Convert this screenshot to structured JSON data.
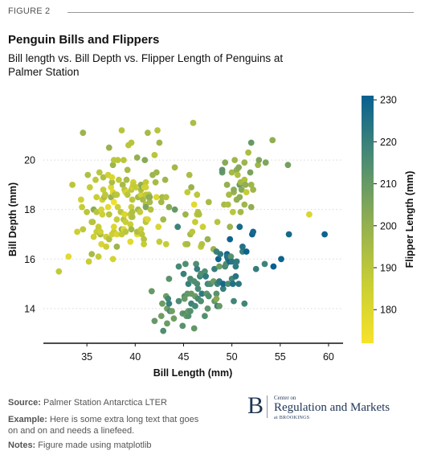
{
  "header": {
    "figure_label": "FIGURE 2",
    "title": "Penguin Bills and Flippers",
    "subtitle": "Bill length vs. Bill Depth vs. Flipper Length of Penguins at Palmer Station"
  },
  "colors": {
    "cmap_low": "#f7e22b",
    "cmap_mid1": "#c7cd35",
    "cmap_mid2": "#8ead53",
    "cmap_mid3": "#4a8b74",
    "cmap_high": "#086090",
    "grid": "#d8d8d8"
  },
  "chart_data": {
    "type": "scatter",
    "title": "Penguin Bills and Flippers",
    "xlabel": "Bill Length (mm)",
    "ylabel": "Bill Depth (mm)",
    "xlim": [
      30.5,
      61.5
    ],
    "ylim": [
      12.6,
      22.6
    ],
    "xticks": [
      35,
      40,
      45,
      50,
      55,
      60
    ],
    "yticks": [
      14,
      16,
      18,
      20
    ],
    "grid": "horizontal dotted",
    "colorbar": {
      "label": "Flipper Length (mm)",
      "range": [
        172,
        231
      ],
      "ticks": [
        180,
        190,
        200,
        210,
        220,
        230
      ]
    },
    "points": [
      [
        32.1,
        15.5,
        188
      ],
      [
        33.1,
        16.1,
        178
      ],
      [
        33.5,
        19.0,
        190
      ],
      [
        34.0,
        17.1,
        185
      ],
      [
        34.4,
        18.4,
        184
      ],
      [
        34.5,
        18.1,
        187
      ],
      [
        34.6,
        21.1,
        198
      ],
      [
        34.6,
        17.2,
        189
      ],
      [
        35.0,
        17.9,
        190
      ],
      [
        35.1,
        19.4,
        193
      ],
      [
        35.2,
        15.9,
        186
      ],
      [
        35.3,
        18.9,
        187
      ],
      [
        35.5,
        16.2,
        195
      ],
      [
        35.5,
        17.5,
        190
      ],
      [
        35.6,
        17.5,
        191
      ],
      [
        35.7,
        16.9,
        185
      ],
      [
        35.7,
        18.0,
        202
      ],
      [
        35.9,
        19.2,
        189
      ],
      [
        36.0,
        18.5,
        186
      ],
      [
        36.0,
        17.9,
        190
      ],
      [
        36.0,
        17.1,
        187
      ],
      [
        36.2,
        17.2,
        187
      ],
      [
        36.2,
        16.1,
        187
      ],
      [
        36.2,
        17.3,
        187
      ],
      [
        36.3,
        19.5,
        190
      ],
      [
        36.4,
        17.0,
        195
      ],
      [
        36.4,
        17.1,
        184
      ],
      [
        36.5,
        16.6,
        181
      ],
      [
        36.5,
        18.0,
        182
      ],
      [
        36.6,
        17.8,
        185
      ],
      [
        36.6,
        18.4,
        184
      ],
      [
        36.7,
        18.8,
        187
      ],
      [
        36.7,
        19.3,
        193
      ],
      [
        36.8,
        18.5,
        193
      ],
      [
        36.9,
        18.6,
        189
      ],
      [
        37.0,
        16.9,
        185
      ],
      [
        37.0,
        16.5,
        185
      ],
      [
        37.2,
        18.1,
        178
      ],
      [
        37.2,
        19.4,
        184
      ],
      [
        37.3,
        20.5,
        199
      ],
      [
        37.3,
        17.8,
        191
      ],
      [
        37.3,
        16.8,
        192
      ],
      [
        37.5,
        18.9,
        179
      ],
      [
        37.5,
        18.5,
        199
      ],
      [
        37.6,
        19.1,
        194
      ],
      [
        37.6,
        17.0,
        185
      ],
      [
        37.6,
        19.3,
        181
      ],
      [
        37.7,
        18.7,
        180
      ],
      [
        37.7,
        19.8,
        198
      ],
      [
        37.7,
        16.0,
        183
      ],
      [
        37.8,
        18.3,
        174
      ],
      [
        37.8,
        17.1,
        186
      ],
      [
        37.8,
        17.3,
        180
      ],
      [
        37.8,
        20.0,
        190
      ],
      [
        37.9,
        18.6,
        172
      ],
      [
        37.9,
        18.6,
        193
      ],
      [
        38.1,
        18.6,
        190
      ],
      [
        38.1,
        17.0,
        181
      ],
      [
        38.1,
        16.5,
        198
      ],
      [
        38.1,
        17.6,
        187
      ],
      [
        38.2,
        18.1,
        185
      ],
      [
        38.2,
        20.0,
        190
      ],
      [
        38.3,
        19.2,
        189
      ],
      [
        38.5,
        17.9,
        190
      ],
      [
        38.6,
        21.2,
        191
      ],
      [
        38.6,
        17.2,
        199
      ],
      [
        38.6,
        17.0,
        188
      ],
      [
        38.7,
        19.0,
        195
      ],
      [
        38.8,
        17.2,
        180
      ],
      [
        38.8,
        17.6,
        191
      ],
      [
        38.8,
        20.0,
        190
      ],
      [
        38.9,
        17.8,
        181
      ],
      [
        38.9,
        18.8,
        190
      ],
      [
        39.0,
        17.1,
        190
      ],
      [
        39.0,
        18.7,
        185
      ],
      [
        39.0,
        17.5,
        186
      ],
      [
        39.1,
        18.7,
        181
      ],
      [
        39.1,
        19.2,
        195
      ],
      [
        39.2,
        19.6,
        195
      ],
      [
        39.2,
        18.6,
        190
      ],
      [
        39.3,
        20.6,
        190
      ],
      [
        39.5,
        17.4,
        186
      ],
      [
        39.5,
        16.7,
        178
      ],
      [
        39.5,
        17.8,
        188
      ],
      [
        39.6,
        17.7,
        186
      ],
      [
        39.6,
        18.8,
        190
      ],
      [
        39.6,
        17.2,
        196
      ],
      [
        39.6,
        18.1,
        186
      ],
      [
        39.6,
        20.7,
        191
      ],
      [
        39.7,
        17.7,
        193
      ],
      [
        39.7,
        18.4,
        190
      ],
      [
        39.7,
        18.9,
        184
      ],
      [
        39.7,
        17.9,
        193
      ],
      [
        39.8,
        19.1,
        184
      ],
      [
        39.8,
        19.0,
        187
      ],
      [
        40.1,
        18.9,
        188
      ],
      [
        40.2,
        17.0,
        176
      ],
      [
        40.2,
        20.1,
        200
      ],
      [
        40.2,
        17.1,
        193
      ],
      [
        40.3,
        18.0,
        195
      ],
      [
        40.3,
        18.5,
        196
      ],
      [
        40.5,
        18.9,
        180
      ],
      [
        40.5,
        17.9,
        187
      ],
      [
        40.6,
        18.6,
        183
      ],
      [
        40.6,
        19.0,
        199
      ],
      [
        40.6,
        18.8,
        193
      ],
      [
        40.6,
        17.2,
        187
      ],
      [
        40.7,
        17.0,
        190
      ],
      [
        40.8,
        18.4,
        195
      ],
      [
        40.8,
        18.9,
        208
      ],
      [
        40.9,
        18.9,
        184
      ],
      [
        40.9,
        16.8,
        191
      ],
      [
        40.9,
        16.6,
        187
      ],
      [
        41.0,
        20.0,
        203
      ],
      [
        41.1,
        17.6,
        182
      ],
      [
        41.1,
        18.2,
        192
      ],
      [
        41.1,
        19.1,
        188
      ],
      [
        41.1,
        18.6,
        189
      ],
      [
        41.1,
        17.5,
        190
      ],
      [
        41.1,
        18.1,
        205
      ],
      [
        41.1,
        18.9,
        183
      ],
      [
        41.3,
        17.6,
        181
      ],
      [
        41.3,
        21.1,
        195
      ],
      [
        41.4,
        18.6,
        191
      ],
      [
        41.4,
        18.5,
        202
      ],
      [
        41.5,
        18.3,
        195
      ],
      [
        41.5,
        18.5,
        201
      ],
      [
        41.6,
        18.0,
        192
      ],
      [
        41.7,
        14.7,
        210
      ],
      [
        41.8,
        19.4,
        198
      ],
      [
        42.0,
        20.2,
        190
      ],
      [
        42.0,
        13.5,
        210
      ],
      [
        42.1,
        19.1,
        195
      ],
      [
        42.2,
        18.5,
        180
      ],
      [
        42.2,
        19.5,
        197
      ],
      [
        42.3,
        21.2,
        191
      ],
      [
        42.4,
        17.3,
        181
      ],
      [
        42.5,
        20.7,
        197
      ],
      [
        42.5,
        16.7,
        187
      ],
      [
        42.7,
        18.3,
        196
      ],
      [
        42.7,
        13.7,
        208
      ],
      [
        42.8,
        18.5,
        195
      ],
      [
        42.8,
        14.2,
        209
      ],
      [
        42.9,
        17.6,
        196
      ],
      [
        42.9,
        13.1,
        215
      ],
      [
        43.1,
        19.2,
        197
      ],
      [
        43.2,
        18.5,
        192
      ],
      [
        43.2,
        16.6,
        187
      ],
      [
        43.2,
        14.5,
        208
      ],
      [
        43.3,
        14.0,
        208
      ],
      [
        43.3,
        13.4,
        209
      ],
      [
        43.4,
        14.4,
        218
      ],
      [
        43.5,
        18.1,
        202
      ],
      [
        43.5,
        15.2,
        213
      ],
      [
        43.5,
        14.2,
        220
      ],
      [
        43.6,
        13.9,
        217
      ],
      [
        43.8,
        13.9,
        208
      ],
      [
        44.0,
        13.6,
        208
      ],
      [
        44.1,
        19.7,
        196
      ],
      [
        44.1,
        18.0,
        210
      ],
      [
        44.4,
        17.3,
        219
      ],
      [
        44.5,
        15.7,
        217
      ],
      [
        44.5,
        14.3,
        216
      ],
      [
        44.9,
        13.8,
        212
      ],
      [
        44.9,
        13.3,
        213
      ],
      [
        45.0,
        15.4,
        220
      ],
      [
        45.1,
        14.5,
        215
      ],
      [
        45.1,
        14.4,
        210
      ],
      [
        45.2,
        17.8,
        198
      ],
      [
        45.2,
        15.8,
        215
      ],
      [
        45.2,
        16.6,
        191
      ],
      [
        45.2,
        13.8,
        215
      ],
      [
        45.3,
        13.7,
        210
      ],
      [
        45.4,
        18.7,
        188
      ],
      [
        45.4,
        14.6,
        211
      ],
      [
        45.4,
        16.6,
        194
      ],
      [
        45.5,
        13.7,
        214
      ],
      [
        45.5,
        15.0,
        220
      ],
      [
        45.5,
        13.9,
        210
      ],
      [
        45.6,
        19.4,
        194
      ],
      [
        45.7,
        13.9,
        214
      ],
      [
        45.7,
        15.2,
        216
      ],
      [
        45.7,
        17.0,
        195
      ],
      [
        45.8,
        14.6,
        210
      ],
      [
        45.8,
        14.2,
        219
      ],
      [
        45.8,
        18.9,
        199
      ],
      [
        45.9,
        17.1,
        190
      ],
      [
        46.0,
        21.5,
        194
      ],
      [
        46.1,
        13.2,
        211
      ],
      [
        46.1,
        15.1,
        215
      ],
      [
        46.1,
        18.2,
        178
      ],
      [
        46.2,
        14.5,
        209
      ],
      [
        46.2,
        14.1,
        217
      ],
      [
        46.2,
        17.5,
        187
      ],
      [
        46.3,
        15.8,
        215
      ],
      [
        46.4,
        17.8,
        191
      ],
      [
        46.4,
        15.0,
        216
      ],
      [
        46.4,
        15.6,
        221
      ],
      [
        46.4,
        18.6,
        190
      ],
      [
        46.5,
        14.8,
        217
      ],
      [
        46.5,
        17.9,
        192
      ],
      [
        46.5,
        14.4,
        217
      ],
      [
        46.6,
        17.8,
        193
      ],
      [
        46.7,
        15.3,
        219
      ],
      [
        46.8,
        15.4,
        215
      ],
      [
        46.8,
        14.3,
        215
      ],
      [
        46.8,
        16.5,
        189
      ],
      [
        46.9,
        14.6,
        222
      ],
      [
        46.9,
        16.6,
        192
      ],
      [
        47.0,
        17.3,
        185
      ],
      [
        47.2,
        13.7,
        214
      ],
      [
        47.2,
        15.5,
        215
      ],
      [
        47.3,
        15.3,
        222
      ],
      [
        47.4,
        14.6,
        212
      ],
      [
        47.5,
        14.0,
        212
      ],
      [
        47.5,
        15.0,
        218
      ],
      [
        47.5,
        16.8,
        199
      ],
      [
        47.6,
        14.5,
        215
      ],
      [
        47.6,
        18.3,
        195
      ],
      [
        47.7,
        15.0,
        216
      ],
      [
        47.8,
        15.0,
        215
      ],
      [
        48.1,
        16.4,
        199
      ],
      [
        48.1,
        15.1,
        209
      ],
      [
        48.2,
        14.3,
        210
      ],
      [
        48.2,
        15.6,
        221
      ],
      [
        48.4,
        14.6,
        213
      ],
      [
        48.4,
        16.3,
        220
      ],
      [
        48.4,
        14.4,
        203
      ],
      [
        48.5,
        17.5,
        191
      ],
      [
        48.5,
        14.1,
        220
      ],
      [
        48.5,
        15.0,
        219
      ],
      [
        48.6,
        16.0,
        230
      ],
      [
        48.7,
        14.1,
        210
      ],
      [
        48.7,
        15.7,
        208
      ],
      [
        48.7,
        15.1,
        222
      ],
      [
        48.8,
        16.2,
        222
      ],
      [
        49.0,
        19.5,
        210
      ],
      [
        49.0,
        19.6,
        212
      ],
      [
        49.1,
        14.8,
        220
      ],
      [
        49.1,
        15.0,
        228
      ],
      [
        49.2,
        18.2,
        195
      ],
      [
        49.3,
        19.9,
        203
      ],
      [
        49.3,
        15.7,
        217
      ],
      [
        49.4,
        15.8,
        216
      ],
      [
        49.5,
        19.0,
        200
      ],
      [
        49.5,
        16.2,
        229
      ],
      [
        49.5,
        16.1,
        224
      ],
      [
        49.6,
        18.2,
        193
      ],
      [
        49.6,
        15.0,
        216
      ],
      [
        49.6,
        16.0,
        225
      ],
      [
        49.7,
        18.6,
        195
      ],
      [
        49.8,
        17.3,
        198
      ],
      [
        49.8,
        15.9,
        229
      ],
      [
        49.8,
        16.8,
        230
      ],
      [
        49.9,
        16.1,
        213
      ],
      [
        50.0,
        19.5,
        196
      ],
      [
        50.0,
        15.2,
        218
      ],
      [
        50.0,
        15.9,
        224
      ],
      [
        50.1,
        17.9,
        190
      ],
      [
        50.1,
        15.0,
        225
      ],
      [
        50.2,
        18.7,
        198
      ],
      [
        50.2,
        18.8,
        202
      ],
      [
        50.2,
        14.3,
        218
      ],
      [
        50.3,
        20.0,
        197
      ],
      [
        50.4,
        15.3,
        224
      ],
      [
        50.4,
        15.7,
        222
      ],
      [
        50.5,
        19.6,
        201
      ],
      [
        50.5,
        18.4,
        200
      ],
      [
        50.5,
        15.9,
        222
      ],
      [
        50.6,
        19.4,
        193
      ],
      [
        50.7,
        19.7,
        203
      ],
      [
        50.7,
        15.0,
        223
      ],
      [
        50.8,
        18.5,
        201
      ],
      [
        50.8,
        19.0,
        210
      ],
      [
        50.8,
        17.3,
        228
      ],
      [
        50.9,
        17.9,
        196
      ],
      [
        50.9,
        19.1,
        196
      ],
      [
        51.0,
        18.8,
        203
      ],
      [
        51.1,
        16.3,
        220
      ],
      [
        51.1,
        16.5,
        225
      ],
      [
        51.3,
        18.2,
        197
      ],
      [
        51.3,
        19.2,
        193
      ],
      [
        51.3,
        19.9,
        198
      ],
      [
        51.3,
        14.2,
        218
      ],
      [
        51.4,
        19.0,
        201
      ],
      [
        51.5,
        16.3,
        230
      ],
      [
        51.5,
        18.7,
        187
      ],
      [
        51.7,
        20.3,
        194
      ],
      [
        51.9,
        19.5,
        206
      ],
      [
        52.0,
        18.1,
        201
      ],
      [
        52.0,
        19.0,
        197
      ],
      [
        52.0,
        20.7,
        210
      ],
      [
        52.1,
        17.0,
        230
      ],
      [
        52.2,
        17.1,
        228
      ],
      [
        52.2,
        18.8,
        197
      ],
      [
        52.5,
        15.6,
        221
      ],
      [
        52.7,
        19.8,
        197
      ],
      [
        52.8,
        20.0,
        205
      ],
      [
        53.4,
        15.8,
        219
      ],
      [
        53.5,
        19.9,
        205
      ],
      [
        54.2,
        20.8,
        201
      ],
      [
        54.3,
        15.7,
        231
      ],
      [
        55.1,
        16.0,
        230
      ],
      [
        55.8,
        19.8,
        207
      ],
      [
        55.9,
        17.0,
        228
      ],
      [
        58.0,
        17.8,
        181
      ],
      [
        59.6,
        17.0,
        230
      ]
    ]
  },
  "footer": {
    "source_label": "Source:",
    "source_text": "Palmer Station Antarctica LTER",
    "example_label": "Example:",
    "example_text": "Here is some extra long text that goes on and on and needs a linefeed.",
    "notes_label": "Notes:",
    "notes_text": "Figure made using matplotlib"
  },
  "logo": {
    "letter": "B",
    "top_line": "Center on",
    "main_line": "Regulation and Markets",
    "bottom_line": "at BROOKINGS"
  }
}
